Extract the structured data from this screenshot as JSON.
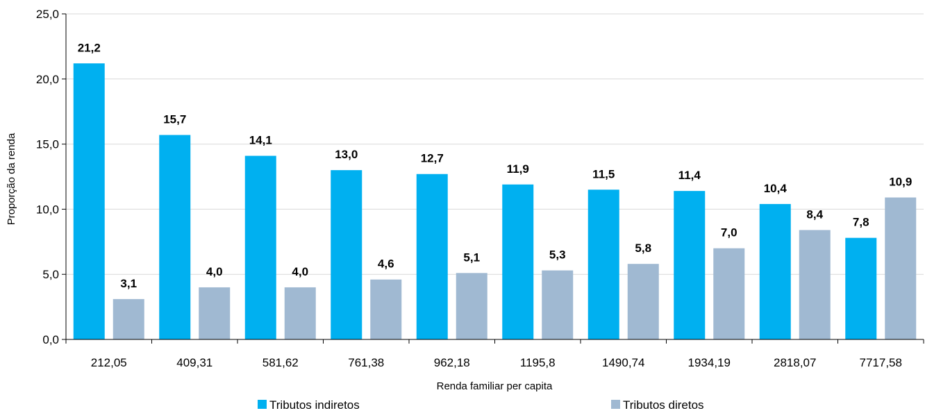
{
  "chart_data": {
    "type": "bar",
    "title": "",
    "xlabel": "Renda familiar per capita",
    "ylabel": "Proporção da renda",
    "ylim": [
      0,
      25
    ],
    "yticks": [
      "0,0",
      "5,0",
      "10,0",
      "15,0",
      "20,0",
      "25,0"
    ],
    "grid": true,
    "legend_position": "bottom",
    "categories": [
      "212,05",
      "409,31",
      "581,62",
      "761,38",
      "962,18",
      "1195,8",
      "1490,74",
      "1934,19",
      "2818,07",
      "7717,58"
    ],
    "series": [
      {
        "name": "Tributos indiretos",
        "color": "#00B0F0",
        "values": [
          21.2,
          15.7,
          14.1,
          13.0,
          12.7,
          11.9,
          11.5,
          11.4,
          10.4,
          7.8
        ],
        "labels": [
          "21,2",
          "15,7",
          "14,1",
          "13,0",
          "12,7",
          "11,9",
          "11,5",
          "11,4",
          "10,4",
          "7,8"
        ]
      },
      {
        "name": "Tributos diretos",
        "color": "#A0B9D2",
        "values": [
          3.1,
          4.0,
          4.0,
          4.6,
          5.1,
          5.3,
          5.8,
          7.0,
          8.4,
          10.9
        ],
        "labels": [
          "3,1",
          "4,0",
          "4,0",
          "4,6",
          "5,1",
          "5,3",
          "5,8",
          "7,0",
          "8,4",
          "10,9"
        ]
      }
    ]
  }
}
